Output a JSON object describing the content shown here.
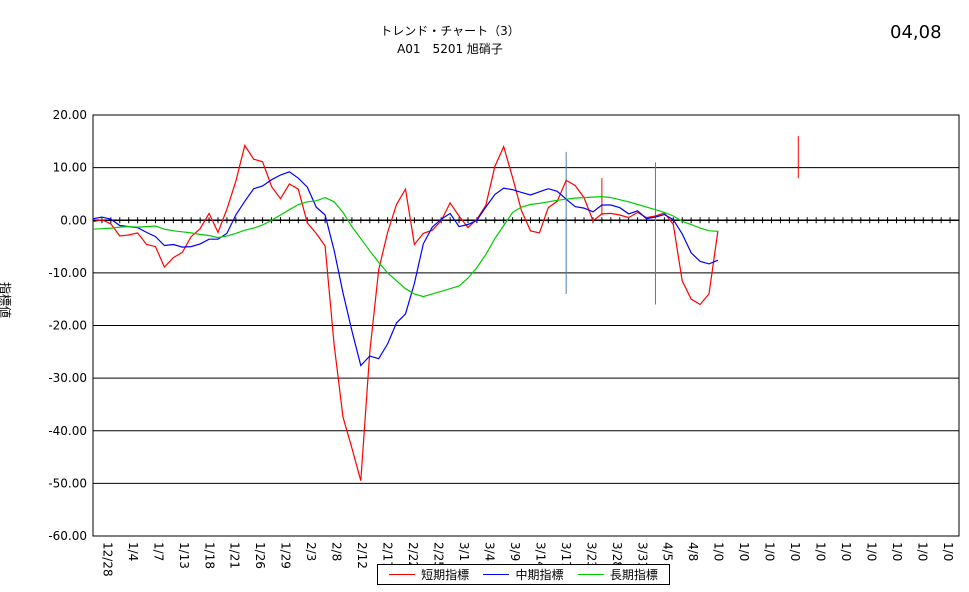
{
  "chart_data": {
    "type": "line",
    "title": "トレンド・チャート（3）",
    "subtitle": "A01　5201 旭硝子",
    "date_stamp": "04,08",
    "ylabel": "指標値",
    "ylim": [
      -60,
      20
    ],
    "yticks": [
      "20.00",
      "10.00",
      "0.00",
      "-10.00",
      "-20.00",
      "-30.00",
      "-40.00",
      "-50.00",
      "-60.00"
    ],
    "xtick_labels": [
      "12/28",
      "1/4",
      "1/7",
      "1/13",
      "1/18",
      "1/21",
      "1/26",
      "1/29",
      "2/3",
      "2/8",
      "2/12",
      "2/17",
      "2/22",
      "2/25",
      "3/1",
      "3/4",
      "3/9",
      "3/14",
      "3/17",
      "3/23",
      "3/28",
      "3/31",
      "4/5",
      "4/8",
      "1/0",
      "1/0",
      "1/0",
      "1/0",
      "1/0",
      "1/0",
      "1/0",
      "1/0",
      "1/0",
      "1/0"
    ],
    "x_count": 98,
    "grid": "horizontal",
    "colors": {
      "short": "#ff0000",
      "mid": "#0000ff",
      "long": "#00cc00",
      "marker": "#4a7fa8"
    },
    "series": [
      {
        "name": "短期指標",
        "color": "#ff0000",
        "values": [
          -0.3,
          0.1,
          -0.7,
          -3.0,
          -2.8,
          -2.4,
          -4.6,
          -5.0,
          -8.9,
          -7.1,
          -6.1,
          -3.1,
          -1.6,
          1.3,
          -2.3,
          2.1,
          7.4,
          14.2,
          11.6,
          11.1,
          6.4,
          4.1,
          6.9,
          5.9,
          -0.5,
          -2.5,
          -4.9,
          -23.6,
          -37.4,
          -43.3,
          -49.5,
          -25.0,
          -9.4,
          -2.3,
          3.0,
          5.9,
          -4.6,
          -2.5,
          -1.9,
          -0.1,
          3.3,
          0.8,
          -1.4,
          0.2,
          2.8,
          10.2,
          14.0,
          8.1,
          1.8,
          -2.0,
          -2.4,
          2.4,
          3.6,
          7.6,
          6.6,
          4.3,
          -0.1,
          1.2,
          1.3,
          1.0,
          0.5,
          1.5,
          0.5,
          0.8,
          1.4,
          -0.8,
          -11.5,
          -15.0,
          -16.0,
          -14.0,
          -2.0
        ]
      },
      {
        "name": "中期指標",
        "color": "#0000ff",
        "values": [
          0.3,
          0.6,
          0.2,
          -1.0,
          -1.2,
          -1.4,
          -2.3,
          -3.1,
          -4.8,
          -4.6,
          -5.1,
          -5.0,
          -4.5,
          -3.6,
          -3.6,
          -2.5,
          1.0,
          3.6,
          6.0,
          6.5,
          7.7,
          8.6,
          9.2,
          8.0,
          6.3,
          2.5,
          1.0,
          -5.7,
          -13.8,
          -21.0,
          -27.6,
          -25.8,
          -26.3,
          -23.5,
          -19.5,
          -17.8,
          -12.0,
          -4.5,
          -1.3,
          0.2,
          1.3,
          -1.2,
          -0.8,
          0.0,
          2.5,
          4.9,
          6.1,
          5.8,
          5.3,
          4.8,
          5.4,
          6.0,
          5.5,
          4.0,
          2.6,
          2.3,
          1.6,
          2.9,
          2.9,
          2.4,
          1.2,
          1.8,
          0.3,
          0.6,
          1.1,
          0.1,
          -2.6,
          -6.2,
          -7.8,
          -8.3,
          -7.6
        ]
      },
      {
        "name": "長期指標",
        "color": "#00cc00",
        "values": [
          -1.7,
          -1.6,
          -1.5,
          -1.3,
          -1.2,
          -1.3,
          -1.2,
          -1.1,
          -1.7,
          -2.0,
          -2.2,
          -2.4,
          -2.7,
          -2.9,
          -3.3,
          -3.0,
          -2.5,
          -1.9,
          -1.5,
          -0.9,
          0.0,
          1.0,
          2.0,
          3.0,
          3.5,
          3.7,
          4.3,
          3.5,
          1.5,
          -1.2,
          -3.5,
          -5.8,
          -8.0,
          -10.0,
          -11.5,
          -13.0,
          -14.0,
          -14.5,
          -14.0,
          -13.5,
          -13.0,
          -12.5,
          -11.0,
          -9.0,
          -6.5,
          -3.5,
          -1.0,
          1.5,
          2.5,
          3.0,
          3.2,
          3.5,
          3.8,
          4.0,
          4.2,
          4.3,
          4.4,
          4.5,
          4.3,
          3.9,
          3.5,
          3.0,
          2.5,
          2.0,
          1.5,
          0.8,
          -0.2,
          -0.8,
          -1.5,
          -2.0,
          -2.1
        ]
      }
    ],
    "markers": [
      {
        "x": 53,
        "y1": -14,
        "y2": 13
      },
      {
        "x": 63,
        "y1": -16,
        "y2": 11
      },
      {
        "x": 57,
        "y1": 1,
        "y2": 8
      },
      {
        "x": 79,
        "y1": 8,
        "y2": 16
      }
    ],
    "legend_position": "bottom"
  }
}
